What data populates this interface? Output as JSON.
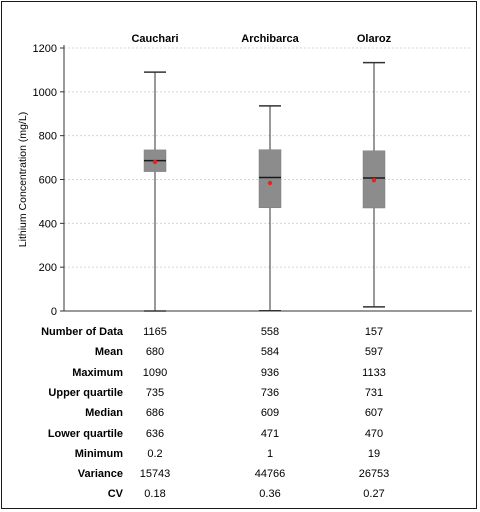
{
  "chart_data": {
    "type": "box",
    "categories": [
      "Cauchari",
      "Archibarca",
      "Olaroz"
    ],
    "ylabel": "Lithium Concentration (mg/L)",
    "ylim": [
      0,
      1200
    ],
    "yticks": [
      0,
      200,
      400,
      600,
      800,
      1000,
      1200
    ],
    "grid": "horizontal dotted",
    "boxes": [
      {
        "name": "Cauchari",
        "min": 0.2,
        "q1": 636,
        "median": 686,
        "q3": 735,
        "max": 1090,
        "mean": 680
      },
      {
        "name": "Archibarca",
        "min": 1,
        "q1": 471,
        "median": 609,
        "q3": 736,
        "max": 936,
        "mean": 584
      },
      {
        "name": "Olaroz",
        "min": 19,
        "q1": 470,
        "median": 607,
        "q3": 731,
        "max": 1133,
        "mean": 597
      }
    ],
    "colors": {
      "box": "#8c8c8c",
      "median": "#1a1a1a",
      "mean": "#e8231f",
      "whisker": "#333333"
    }
  },
  "table": {
    "rows": [
      {
        "label": "Number of Data",
        "values": [
          "1165",
          "558",
          "157"
        ]
      },
      {
        "label": "Mean",
        "values": [
          "680",
          "584",
          "597"
        ]
      },
      {
        "label": "Maximum",
        "values": [
          "1090",
          "936",
          "1133"
        ]
      },
      {
        "label": "Upper quartile",
        "values": [
          "735",
          "736",
          "731"
        ]
      },
      {
        "label": "Median",
        "values": [
          "686",
          "609",
          "607"
        ]
      },
      {
        "label": "Lower quartile",
        "values": [
          "636",
          "471",
          "470"
        ]
      },
      {
        "label": "Minimum",
        "values": [
          "0.2",
          "1",
          "19"
        ]
      },
      {
        "label": "Variance",
        "values": [
          "15743",
          "44766",
          "26753"
        ]
      },
      {
        "label": "CV",
        "values": [
          "0.18",
          "0.36",
          "0.27"
        ]
      }
    ]
  }
}
